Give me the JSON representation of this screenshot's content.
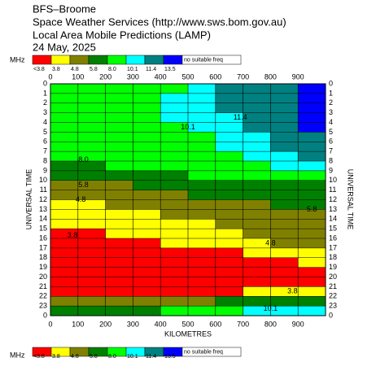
{
  "chart_data": {
    "type": "heatmap",
    "title": [
      "BFS–Broome",
      "Space Weather Services (http://www.sws.bom.gov.au)",
      "Local Area Mobile Predictions (LAMP)",
      "24 May, 2025"
    ],
    "legend_unit": "MHz",
    "legend": [
      {
        "label": "<3.8",
        "color": "#ff0000"
      },
      {
        "label": "3.8",
        "value": 3.8,
        "color": "#ffff00"
      },
      {
        "label": "4.8",
        "value": 4.8,
        "color": "#808000"
      },
      {
        "label": "5.8",
        "value": 5.8,
        "color": "#008000"
      },
      {
        "label": "8.0",
        "value": 8,
        "color": "#00ff00"
      },
      {
        "label": "10.1",
        "value": 10.1,
        "color": "#00ffff"
      },
      {
        "label": "11.4",
        "value": 11.4,
        "color": "#008080"
      },
      {
        "label": "13.5",
        "value": 13.5,
        "color": "#0000ff"
      },
      {
        "label": "no suitable freq",
        "color": "#ffffff"
      }
    ],
    "xlabel": "KILOMETRES",
    "ylabel": "UNIVERSAL TIME",
    "xlim": [
      0,
      1000
    ],
    "xticks": [
      0,
      100,
      200,
      300,
      400,
      500,
      600,
      700,
      800,
      900
    ],
    "ylim": [
      0,
      24
    ],
    "yticks": [
      0,
      1,
      2,
      3,
      4,
      5,
      6,
      7,
      8,
      9,
      10,
      11,
      12,
      13,
      14,
      15,
      16,
      17,
      18,
      19,
      20,
      21,
      22,
      23,
      {
        "value": 24,
        "label": "0"
      }
    ],
    "cells": [
      [
        9,
        9,
        9,
        9,
        9,
        10.5,
        12,
        12,
        12,
        14
      ],
      [
        9,
        9,
        9,
        9,
        10.5,
        10.5,
        12,
        12,
        12,
        14
      ],
      [
        9,
        9,
        9,
        9,
        10.5,
        10.5,
        12,
        12,
        12,
        14
      ],
      [
        9,
        9,
        9,
        9,
        10.5,
        10.5,
        10.5,
        12,
        12,
        14
      ],
      [
        9,
        9,
        9,
        9,
        9,
        10.5,
        10.5,
        12,
        12,
        14
      ],
      [
        9,
        9,
        9,
        9,
        9,
        9,
        10.5,
        10.5,
        12,
        12
      ],
      [
        9,
        9,
        9,
        9,
        9,
        9,
        10.5,
        10.5,
        12,
        12
      ],
      [
        9,
        9,
        9,
        9,
        9,
        9,
        9,
        10.5,
        10.5,
        12
      ],
      [
        6.5,
        6.5,
        9,
        9,
        9,
        9,
        9,
        9,
        10.5,
        10.5
      ],
      [
        6.5,
        6.5,
        6.5,
        6.5,
        6.5,
        9,
        9,
        9,
        9,
        9
      ],
      [
        5,
        5,
        5,
        6.5,
        6.5,
        6.5,
        6.5,
        6.5,
        6.5,
        6.5
      ],
      [
        5,
        5,
        5,
        5,
        5,
        6.5,
        6.5,
        6.5,
        6.5,
        6.5
      ],
      [
        4,
        4,
        5,
        5,
        5,
        5,
        5,
        5,
        6.5,
        6.5
      ],
      [
        4,
        4,
        4,
        4,
        5,
        5,
        5,
        5,
        5,
        5
      ],
      [
        4,
        4,
        4,
        4,
        4,
        4,
        5,
        5,
        5,
        5
      ],
      [
        3,
        3,
        4,
        4,
        4,
        4,
        4,
        5,
        5,
        5
      ],
      [
        3,
        3,
        3,
        3,
        4,
        4,
        4,
        4,
        5,
        5
      ],
      [
        3,
        3,
        3,
        3,
        3,
        3,
        3,
        4,
        4,
        4
      ],
      [
        3,
        3,
        3,
        3,
        3,
        3,
        3,
        3,
        3,
        4
      ],
      [
        3,
        3,
        3,
        3,
        3,
        3,
        3,
        3,
        3,
        3
      ],
      [
        3,
        3,
        3,
        3,
        3,
        3,
        3,
        3,
        3,
        3
      ],
      [
        3,
        3,
        3,
        3,
        3,
        3,
        3,
        4,
        4,
        4
      ],
      [
        5,
        5,
        5,
        5,
        5,
        5,
        6.5,
        6.5,
        6.5,
        6.5
      ],
      [
        6.5,
        6.5,
        6.5,
        6.5,
        9,
        9,
        9,
        10.5,
        10.5,
        10.5
      ]
    ],
    "contour_labels": [
      {
        "text": "10.1",
        "x": 500,
        "y": 4.5
      },
      {
        "text": "11.4",
        "x": 690,
        "y": 3.5
      },
      {
        "text": "8.0",
        "x": 120,
        "y": 7.9
      },
      {
        "text": "5.8",
        "x": 120,
        "y": 10.5
      },
      {
        "text": "4.8",
        "x": 110,
        "y": 12
      },
      {
        "text": "5.8",
        "x": 950,
        "y": 13
      },
      {
        "text": "4.8",
        "x": 800,
        "y": 16.5
      },
      {
        "text": "3.8",
        "x": 80,
        "y": 15.7
      },
      {
        "text": "3.8",
        "x": 880,
        "y": 21.5
      },
      {
        "text": "10.1",
        "x": 800,
        "y": 23.3
      }
    ]
  }
}
